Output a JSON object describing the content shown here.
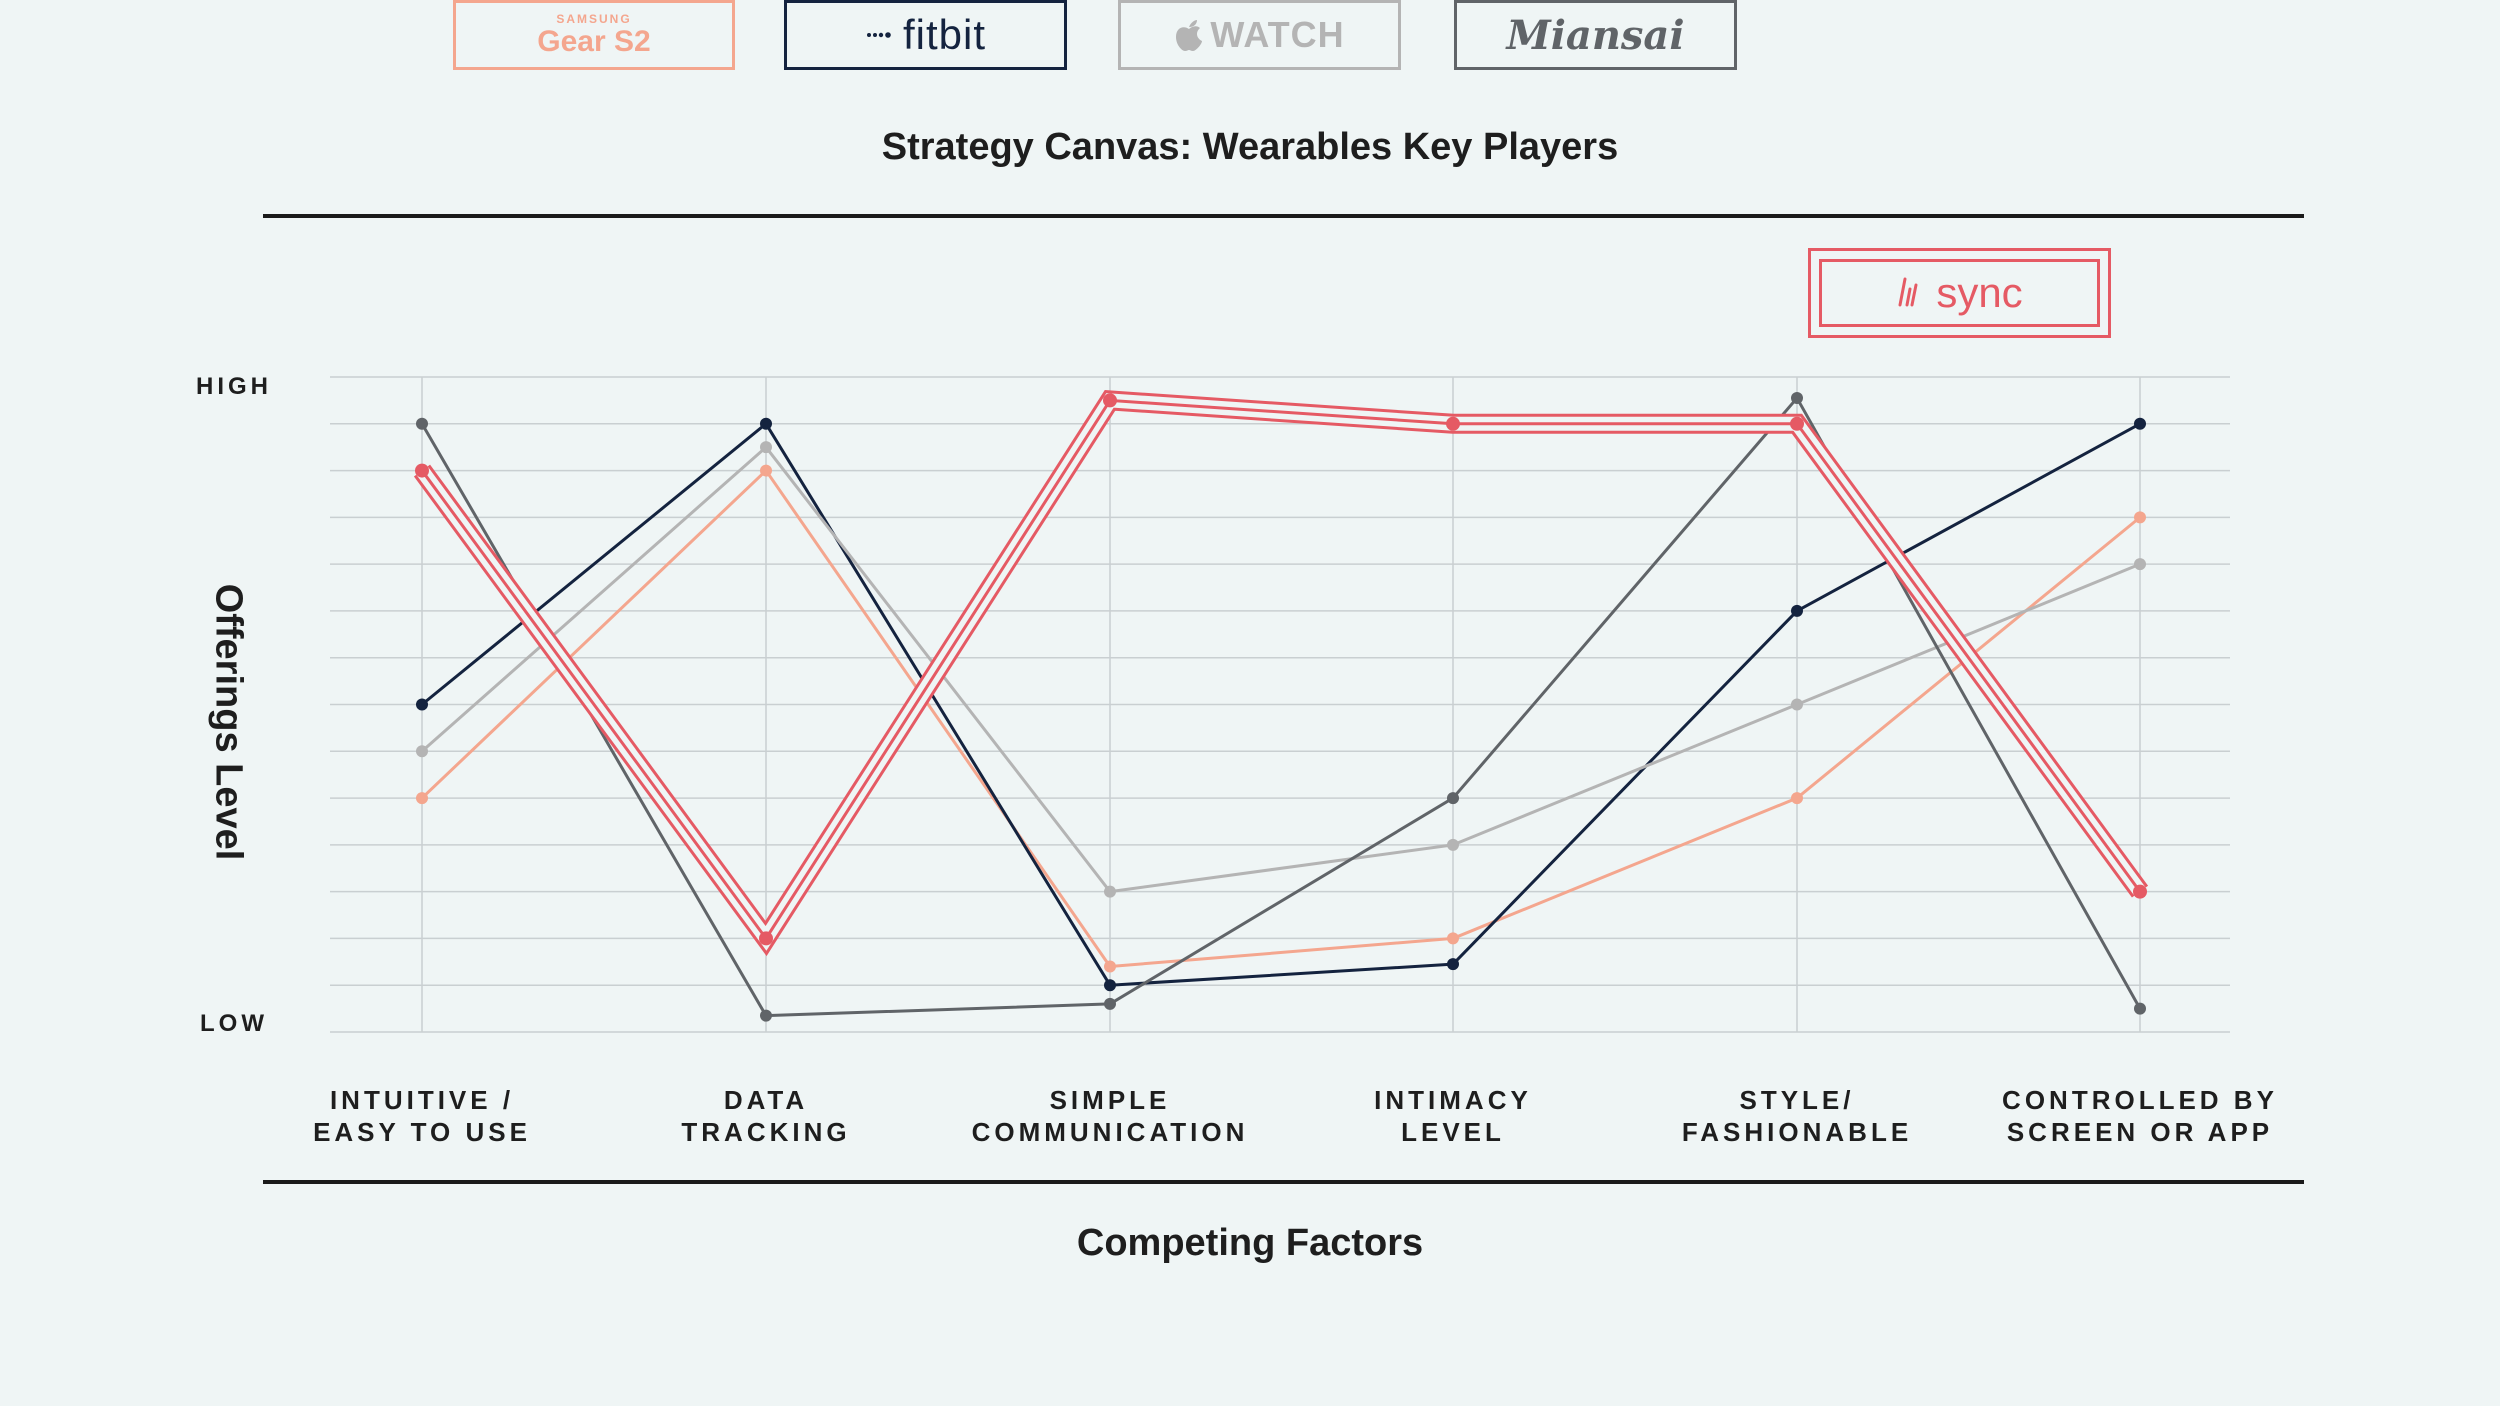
{
  "chart_data": {
    "type": "line",
    "title": "Strategy Canvas: Wearables Key Players",
    "xlabel": "Competing Factors",
    "ylabel": "Offerings Level",
    "y_tick_labels": {
      "high": "HIGH",
      "low": "LOW"
    },
    "ylim": [
      0,
      14
    ],
    "categories": [
      "INTUITIVE /\nEASY TO USE",
      "DATA\nTRACKING",
      "SIMPLE\nCOMMUNICATION",
      "INTIMACY\nLEVEL",
      "STYLE/\nFASHIONABLE",
      "CONTROLLED BY\nSCREEN OR APP"
    ],
    "grid": true,
    "legend_position": "top",
    "series": [
      {
        "name": "Gear S2",
        "brand_small": "SAMSUNG",
        "color": "#f4a68e",
        "values": [
          5.0,
          12.0,
          1.4,
          2.0,
          5.0,
          11.0
        ]
      },
      {
        "name": "fitbit",
        "color": "#14233f",
        "values": [
          7.0,
          13.0,
          1.0,
          1.45,
          9.0,
          13.0
        ]
      },
      {
        "name": "WATCH",
        "color": "#b4b4b4",
        "values": [
          6.0,
          12.5,
          3.0,
          4.0,
          7.0,
          10.0
        ]
      },
      {
        "name": "Miansai",
        "color": "#606468",
        "values": [
          13.0,
          0.35,
          0.6,
          5.0,
          13.55,
          0.5
        ]
      },
      {
        "name": "sync",
        "color": "#e55a64",
        "values": [
          12.0,
          2.0,
          13.5,
          13.0,
          13.0,
          3.0
        ]
      }
    ]
  }
}
